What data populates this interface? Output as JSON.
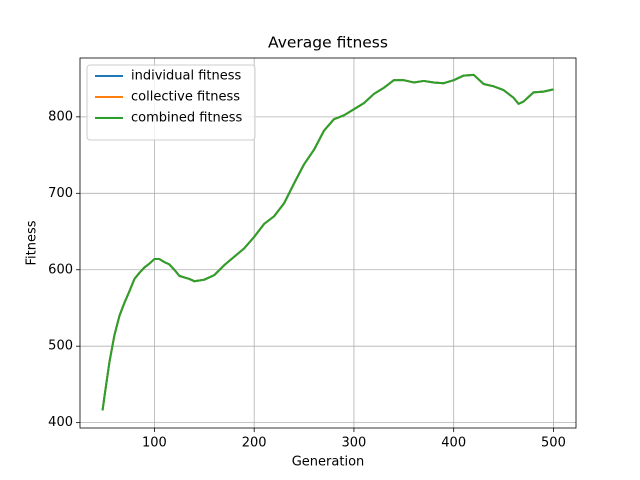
{
  "chart_data": {
    "type": "line",
    "title": "Average fitness",
    "x_label": "Generation",
    "y_label": "Fitness",
    "x": [
      48,
      50,
      55,
      60,
      65,
      70,
      75,
      80,
      85,
      90,
      95,
      100,
      105,
      110,
      115,
      120,
      125,
      130,
      135,
      140,
      145,
      150,
      160,
      170,
      180,
      190,
      200,
      210,
      220,
      230,
      240,
      250,
      260,
      270,
      280,
      290,
      300,
      310,
      320,
      330,
      340,
      350,
      360,
      370,
      380,
      390,
      400,
      410,
      420,
      430,
      440,
      450,
      460,
      465,
      470,
      480,
      490,
      500
    ],
    "series": [
      {
        "name": "individual fitness",
        "color": "#1f77b4",
        "values": [
          416,
          435,
          480,
          515,
          540,
          557,
          572,
          588,
          596,
          603,
          608,
          614,
          614,
          610,
          607,
          600,
          592,
          590,
          588,
          585,
          586,
          587,
          593,
          606,
          617,
          628,
          643,
          660,
          670,
          687,
          713,
          738,
          757,
          782,
          797,
          802,
          810,
          818,
          830,
          838,
          848,
          848,
          845,
          847,
          845,
          844,
          848,
          854,
          855,
          843,
          840,
          835,
          825,
          817,
          820,
          832,
          833,
          836
        ]
      },
      {
        "name": "collective fitness",
        "color": "#ff7f0e",
        "values": [
          416,
          435,
          480,
          515,
          540,
          557,
          572,
          588,
          596,
          603,
          608,
          614,
          614,
          610,
          607,
          600,
          592,
          590,
          588,
          585,
          586,
          587,
          593,
          606,
          617,
          628,
          643,
          660,
          670,
          687,
          713,
          738,
          757,
          782,
          797,
          802,
          810,
          818,
          830,
          838,
          848,
          848,
          845,
          847,
          845,
          844,
          848,
          854,
          855,
          843,
          840,
          835,
          825,
          817,
          820,
          832,
          833,
          836
        ]
      },
      {
        "name": "combined fitness",
        "color": "#2ca02c",
        "values": [
          416,
          435,
          480,
          515,
          540,
          557,
          572,
          588,
          596,
          603,
          608,
          614,
          614,
          610,
          607,
          600,
          592,
          590,
          588,
          585,
          586,
          587,
          593,
          606,
          617,
          628,
          643,
          660,
          670,
          687,
          713,
          738,
          757,
          782,
          797,
          802,
          810,
          818,
          830,
          838,
          848,
          848,
          845,
          847,
          845,
          844,
          848,
          854,
          855,
          843,
          840,
          835,
          825,
          817,
          820,
          832,
          833,
          836
        ]
      }
    ],
    "xlim": [
      25.4,
      522.6
    ],
    "ylim": [
      393,
      877
    ],
    "xticks": [
      100,
      200,
      300,
      400,
      500
    ],
    "yticks": [
      400,
      500,
      600,
      700,
      800
    ],
    "grid": true,
    "legend": "upper left"
  }
}
